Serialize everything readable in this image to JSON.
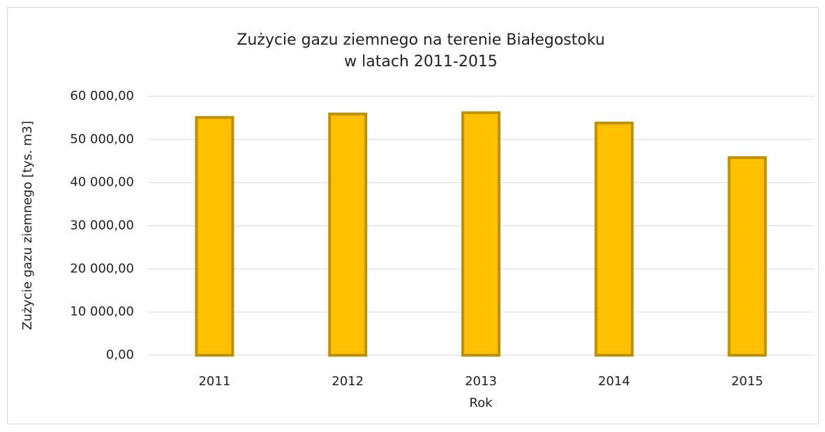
{
  "chart_data": {
    "type": "bar",
    "title": [
      "Zużycie gazu ziemnego na terenie Białegostoku",
      "w latach 2011-2015"
    ],
    "x_label": "Rok",
    "y_label": "Zużycie gazu ziemnego [tys. m3]",
    "categories": [
      "2011",
      "2012",
      "2013",
      "2014",
      "2015"
    ],
    "values": [
      55100,
      55900,
      56200,
      53800,
      45800
    ],
    "color": "#ffc000",
    "edge_color": "#bf9000",
    "ylim": [
      0,
      60000
    ],
    "yticks": [
      {
        "value": 0,
        "label": "0,00"
      },
      {
        "value": 10000,
        "label": "10 000,00"
      },
      {
        "value": 20000,
        "label": "20 000,00"
      },
      {
        "value": 30000,
        "label": "30 000,00"
      },
      {
        "value": 40000,
        "label": "40 000,00"
      },
      {
        "value": 50000,
        "label": "50 000,00"
      },
      {
        "value": 60000,
        "label": "60 000,00"
      }
    ],
    "grid": true
  }
}
